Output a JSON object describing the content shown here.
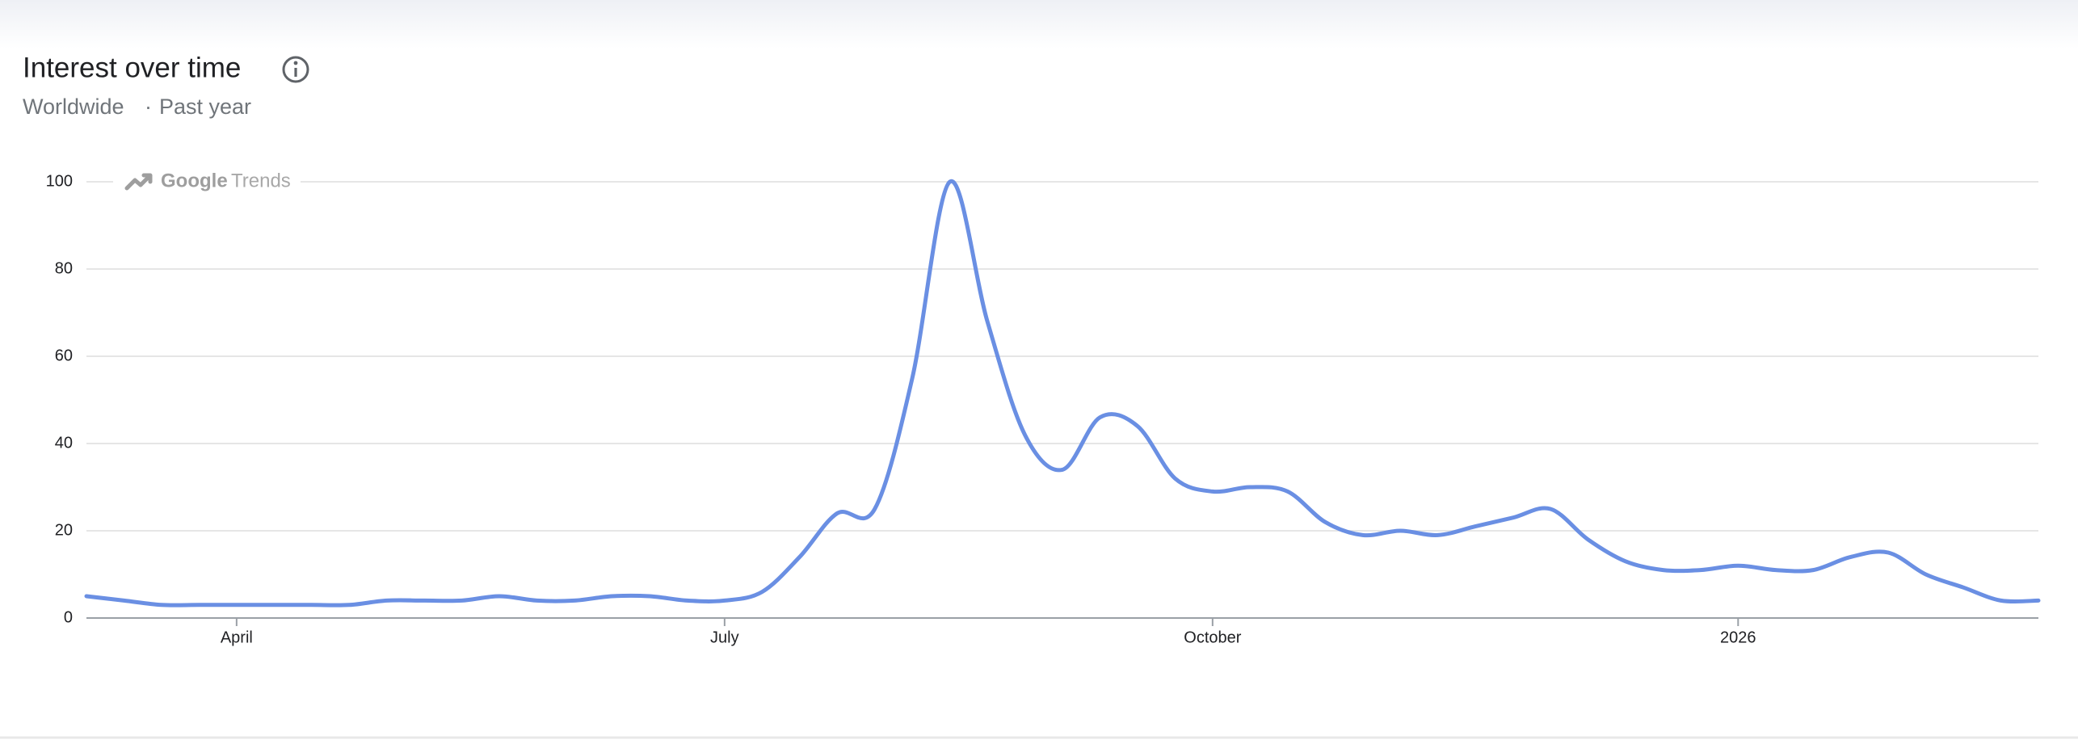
{
  "header": {
    "title": "Interest over time",
    "region": "Worldwide",
    "separator": "·",
    "period": "Past year"
  },
  "watermark": {
    "brand": "Google",
    "product": "Trends"
  },
  "chart_data": {
    "type": "line",
    "categories": [
      null,
      null,
      null,
      null,
      "April",
      null,
      null,
      null,
      null,
      null,
      null,
      null,
      null,
      null,
      null,
      null,
      null,
      "July",
      null,
      null,
      null,
      null,
      null,
      null,
      null,
      null,
      null,
      null,
      null,
      null,
      "October",
      null,
      null,
      null,
      null,
      null,
      null,
      null,
      null,
      null,
      null,
      null,
      null,
      null,
      "2026",
      null,
      null,
      null,
      null,
      null,
      null,
      null,
      null
    ],
    "series": [
      {
        "color": "#6a8fe3",
        "values": [
          5,
          4,
          3,
          3,
          3,
          3,
          3,
          3,
          4,
          4,
          4,
          5,
          4,
          4,
          5,
          5,
          4,
          4,
          6,
          14,
          24,
          25,
          55,
          100,
          68,
          42,
          34,
          46,
          44,
          32,
          29,
          30,
          29,
          22,
          19,
          20,
          19,
          21,
          23,
          25,
          18,
          13,
          11,
          11,
          12,
          11,
          11,
          14,
          15,
          10,
          7,
          4,
          4
        ]
      }
    ],
    "ylim": [
      0,
      100
    ],
    "yticks": [
      0,
      20,
      40,
      60,
      80,
      100
    ],
    "grid": true
  }
}
